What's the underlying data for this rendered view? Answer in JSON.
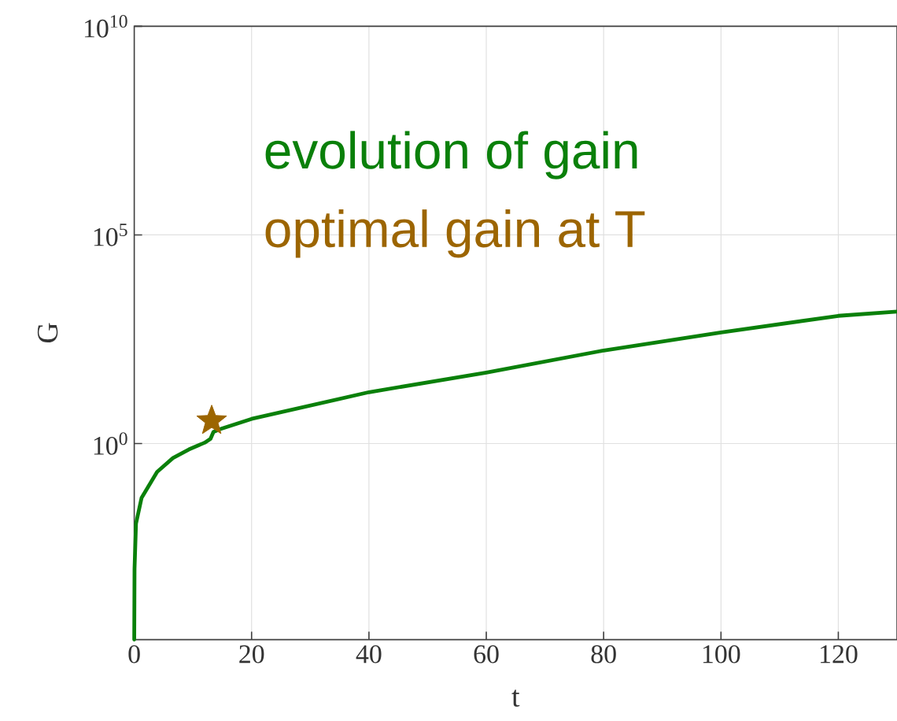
{
  "chart_data": {
    "type": "line",
    "xlabel": "t",
    "ylabel": "G",
    "log": "y",
    "grid": true,
    "legend": "top",
    "xlim": [
      0,
      130
    ],
    "xticks": [
      0,
      20,
      40,
      60,
      80,
      100,
      120
    ],
    "ylim": [
      2e-05,
      10000000000.0
    ],
    "yticks": [
      {
        "value": 1,
        "label": "10$^{0}$"
      },
      {
        "value": 100000,
        "label": "10$^{5}$"
      },
      {
        "value": 10000000000,
        "label": "10$^{10}$"
      }
    ],
    "series": [
      {
        "name": "evolution of gain",
        "color": "#0a800a",
        "line_style": "solid",
        "marker": "none",
        "x": [
          0,
          0.05,
          0.3,
          1.25,
          3.9,
          6.6,
          9.3,
          12,
          13,
          13.5,
          14.6,
          20,
          40,
          60,
          80,
          100,
          120,
          130
        ],
        "values": [
          2e-05,
          0.001,
          0.012,
          0.05,
          0.21,
          0.45,
          0.72,
          1.05,
          1.3,
          1.9,
          2.2,
          3.9,
          17,
          50,
          170,
          460,
          1150,
          1450
        ]
      },
      {
        "name": "optimal gain at T",
        "type": "scatter",
        "color": "#9c6500",
        "marker": "star",
        "x": [
          13.2
        ],
        "values": [
          3.5
        ]
      }
    ]
  }
}
